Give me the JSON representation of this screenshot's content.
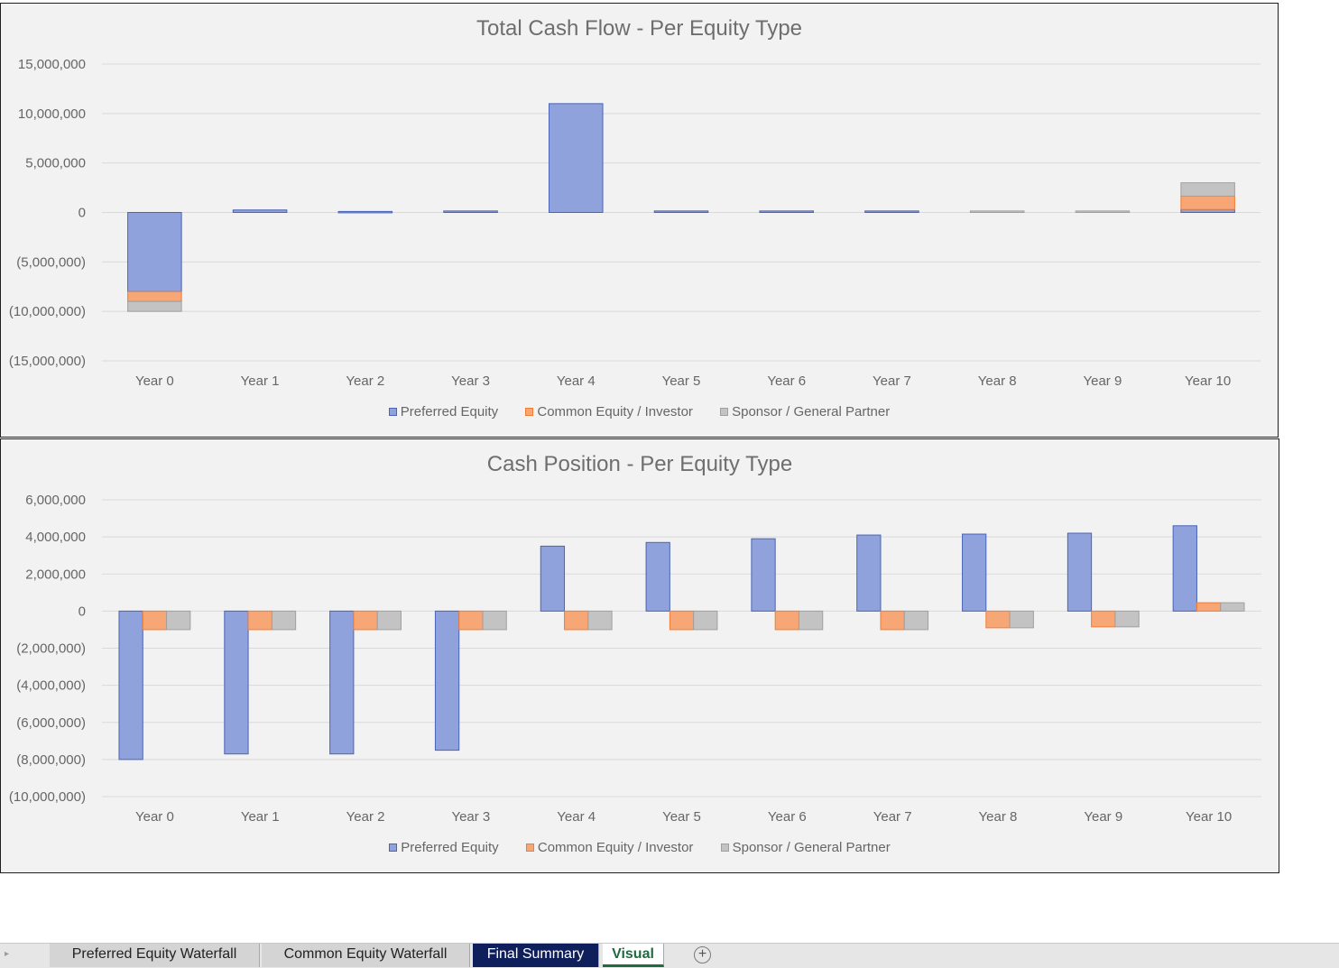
{
  "chart_data": [
    {
      "type": "bar",
      "stacked": true,
      "title": "Total Cash Flow - Per Equity Type",
      "categories": [
        "Year 0",
        "Year 1",
        "Year 2",
        "Year 3",
        "Year 4",
        "Year 5",
        "Year 6",
        "Year 7",
        "Year 8",
        "Year 9",
        "Year 10"
      ],
      "series": [
        {
          "name": "Preferred Equity",
          "color": "#8fa2db",
          "values": [
            -8000000,
            250000,
            100000,
            150000,
            11000000,
            150000,
            150000,
            150000,
            0,
            0,
            300000
          ]
        },
        {
          "name": "Common Equity / Investor",
          "color": "#f7a676",
          "values": [
            -1000000,
            0,
            0,
            0,
            0,
            0,
            0,
            0,
            0,
            0,
            1350000
          ]
        },
        {
          "name": "Sponsor / General Partner",
          "color": "#c3c3c3",
          "values": [
            -1000000,
            0,
            0,
            0,
            0,
            0,
            0,
            0,
            150000,
            150000,
            1350000
          ]
        }
      ],
      "ylim": [
        -15000000,
        15000000
      ],
      "yticks": [
        "15,000,000",
        "10,000,000",
        "5,000,000",
        "0",
        "(5,000,000)",
        "(10,000,000)",
        "(15,000,000)"
      ],
      "grid": true,
      "legend": "bottom"
    },
    {
      "type": "bar",
      "stacked": false,
      "title": "Cash Position - Per Equity Type",
      "categories": [
        "Year 0",
        "Year 1",
        "Year 2",
        "Year 3",
        "Year 4",
        "Year 5",
        "Year 6",
        "Year 7",
        "Year 8",
        "Year 9",
        "Year 10"
      ],
      "series": [
        {
          "name": "Preferred Equity",
          "color": "#8fa2db",
          "values": [
            -8000000,
            -7700000,
            -7700000,
            -7500000,
            3500000,
            3700000,
            3900000,
            4100000,
            4150000,
            4200000,
            4600000
          ]
        },
        {
          "name": "Common Equity / Investor",
          "color": "#f7a676",
          "values": [
            -1000000,
            -1000000,
            -1000000,
            -1000000,
            -1000000,
            -1000000,
            -1000000,
            -1000000,
            -900000,
            -850000,
            450000
          ]
        },
        {
          "name": "Sponsor / General Partner",
          "color": "#c3c3c3",
          "values": [
            -1000000,
            -1000000,
            -1000000,
            -1000000,
            -1000000,
            -1000000,
            -1000000,
            -1000000,
            -900000,
            -850000,
            450000
          ]
        }
      ],
      "ylim": [
        -10000000,
        6000000
      ],
      "yticks": [
        "6,000,000",
        "4,000,000",
        "2,000,000",
        "0",
        "(2,000,000)",
        "(4,000,000)",
        "(6,000,000)",
        "(8,000,000)",
        "(10,000,000)"
      ],
      "grid": true,
      "legend": "bottom"
    }
  ],
  "tabs": [
    {
      "label": "Preferred Equity Waterfall"
    },
    {
      "label": "Common Equity Waterfall"
    },
    {
      "label": "Final Summary"
    },
    {
      "label": "Visual",
      "active": true
    }
  ],
  "icons": {
    "scroll_left": "triangle-right-icon",
    "add_sheet": "plus-circle-icon"
  }
}
